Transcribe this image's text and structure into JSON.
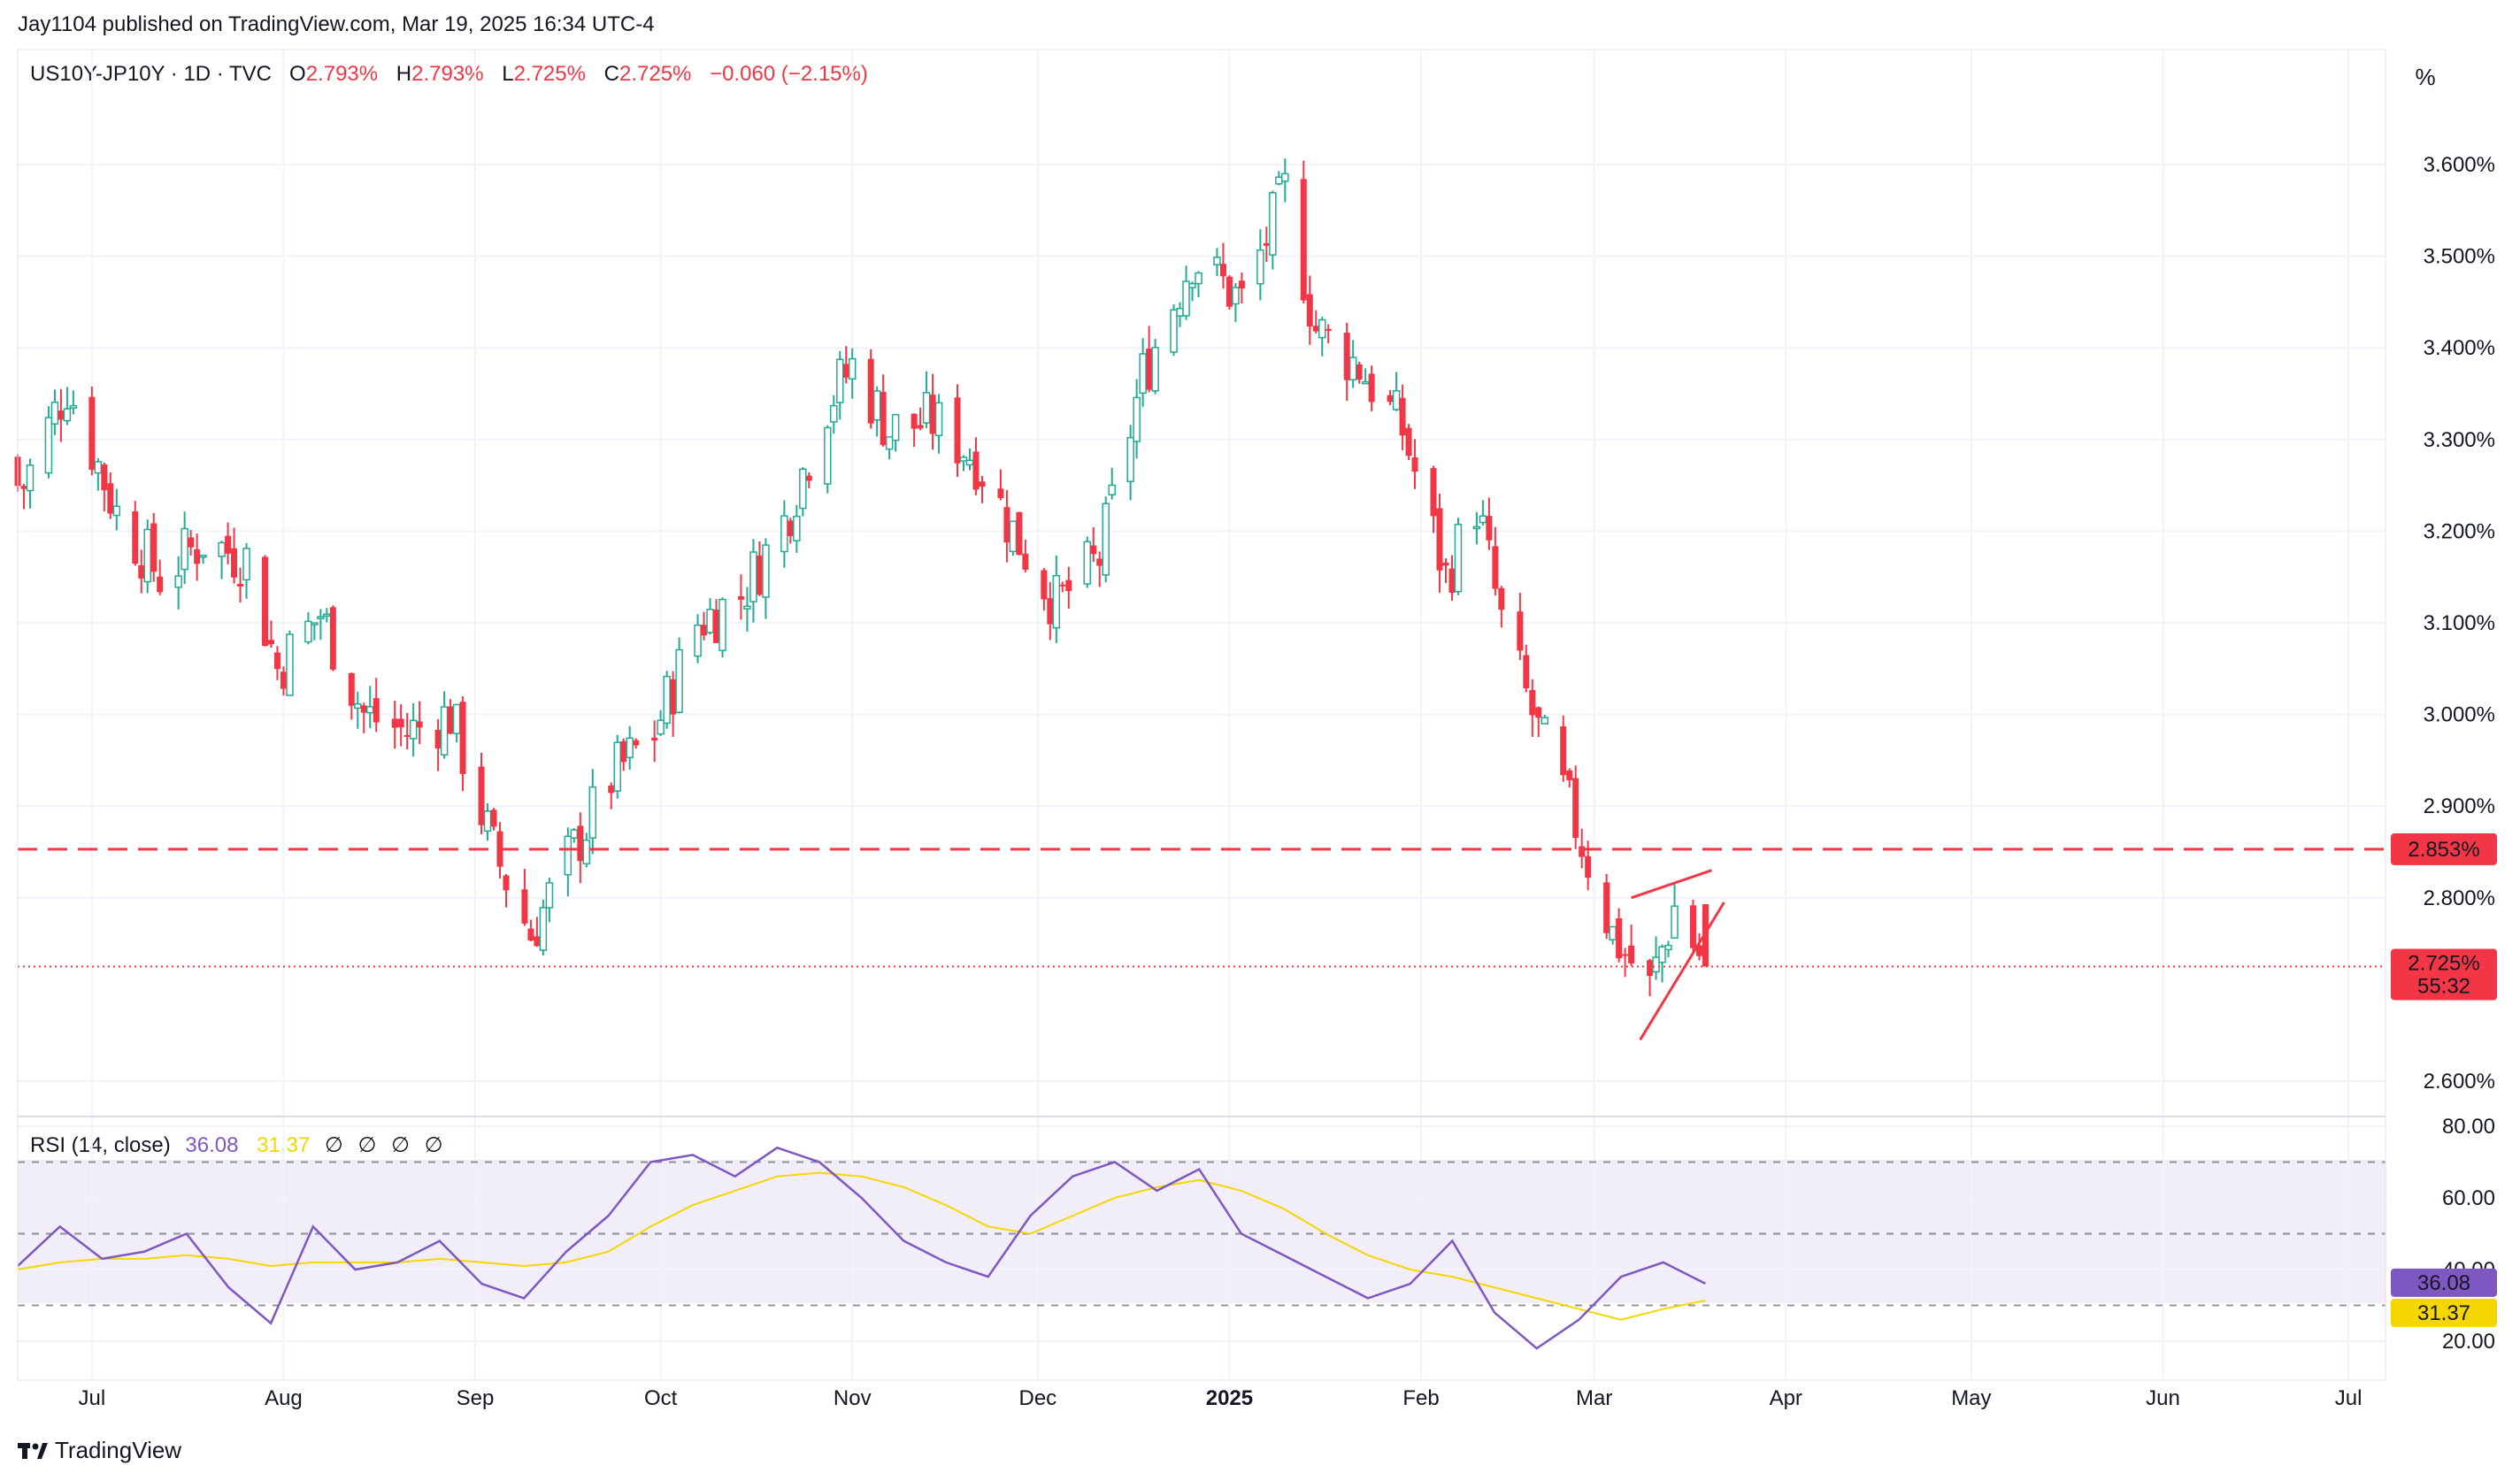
{
  "header": {
    "published": "Jay1104 published on TradingView.com, Mar 19, 2025 16:34 UTC-4"
  },
  "legend": {
    "symbol": "US10Y-JP10Y · 1D · TVC",
    "open_label": "O",
    "open": "2.793%",
    "high_label": "H",
    "high": "2.793%",
    "low_label": "L",
    "low": "2.725%",
    "close_label": "C",
    "close": "2.725%",
    "change": "−0.060 (−2.15%)"
  },
  "scale_button": "%",
  "rsi_legend": {
    "title": "RSI (14, close)",
    "rsi": "36.08",
    "ma": "31.37",
    "na": [
      "∅",
      "∅",
      "∅",
      "∅"
    ]
  },
  "price_axis": {
    "ticks": [
      "3.600%",
      "3.500%",
      "3.400%",
      "3.300%",
      "3.200%",
      "3.100%",
      "3.000%",
      "2.900%",
      "2.800%",
      "2.600%"
    ],
    "resistance_label": "2.853%",
    "last_price_label": "2.725%",
    "countdown": "55:32"
  },
  "rsi_axis": {
    "ticks": [
      "80.00",
      "60.00",
      "40.00",
      "20.00"
    ],
    "rsi_label": "36.08",
    "ma_label": "31.37"
  },
  "time_axis": [
    "Jul",
    "Aug",
    "Sep",
    "Oct",
    "Nov",
    "Dec",
    "2025",
    "Feb",
    "Mar",
    "Apr",
    "May",
    "Jun",
    "Jul"
  ],
  "footer": {
    "brand": "TradingView",
    "logo": "tradingview-logo-icon"
  },
  "colors": {
    "up": "#22ab94",
    "down": "#f23645",
    "rsi": "#7e57c2",
    "rsi_ma": "#f5d600",
    "grid": "#f0f3fa",
    "band": "rgba(126,87,194,0.1)"
  },
  "chart_data": [
    {
      "type": "candlestick",
      "symbol": "US10Y-JP10Y",
      "interval": "1D",
      "unit": "%",
      "ylim": [
        2.56,
        3.66
      ],
      "x_range": [
        "2024-06-19",
        "2025-07-07"
      ],
      "grid": true,
      "scale": "right",
      "resistance": 2.853,
      "last": 2.725,
      "series": [
        {
          "name": "US10Y-JP10Y",
          "dates": [
            "2024-06-20",
            "2024-06-27",
            "2024-07-05",
            "2024-07-12",
            "2024-07-19",
            "2024-07-26",
            "2024-07-31",
            "2024-08-07",
            "2024-08-14",
            "2024-08-21",
            "2024-08-28",
            "2024-09-04",
            "2024-09-10",
            "2024-09-16",
            "2024-09-23",
            "2024-09-30",
            "2024-10-07",
            "2024-10-14",
            "2024-10-21",
            "2024-10-28",
            "2024-11-01",
            "2024-11-07",
            "2024-11-14",
            "2024-11-21",
            "2024-11-27",
            "2024-12-04",
            "2024-12-11",
            "2024-12-18",
            "2024-12-26",
            "2025-01-03",
            "2025-01-10",
            "2025-01-15",
            "2025-01-22",
            "2025-01-29",
            "2025-02-05",
            "2025-02-10",
            "2025-02-14",
            "2025-02-20",
            "2025-02-26",
            "2025-03-04",
            "2025-03-10",
            "2025-03-14",
            "2025-03-19"
          ],
          "close": [
            3.25,
            3.36,
            3.22,
            3.15,
            3.19,
            3.17,
            3.05,
            3.11,
            3.0,
            2.98,
            3.0,
            2.85,
            2.76,
            2.84,
            2.93,
            2.98,
            3.1,
            3.13,
            3.21,
            3.34,
            3.38,
            3.31,
            3.32,
            3.28,
            3.2,
            3.12,
            3.17,
            3.37,
            3.5,
            3.45,
            3.57,
            3.42,
            3.38,
            3.31,
            3.15,
            3.23,
            3.1,
            2.98,
            2.88,
            2.76,
            2.7,
            2.79,
            2.725
          ]
        }
      ]
    },
    {
      "type": "line",
      "title": "RSI (14, close)",
      "ylim": [
        15,
        82
      ],
      "bands": {
        "upper": 70,
        "middle": 50,
        "lower": 30
      },
      "series": [
        {
          "name": "RSI",
          "values": [
            41,
            52,
            43,
            45,
            50,
            35,
            25,
            52,
            40,
            42,
            48,
            36,
            32,
            45,
            55,
            70,
            72,
            66,
            74,
            70,
            60,
            48,
            42,
            38,
            55,
            66,
            70,
            62,
            68,
            50,
            44,
            38,
            32,
            36,
            48,
            28,
            18,
            26,
            38,
            42,
            36.08
          ]
        },
        {
          "name": "MA",
          "values": [
            40,
            42,
            43,
            43,
            44,
            43,
            41,
            42,
            42,
            42,
            43,
            42,
            41,
            42,
            45,
            52,
            58,
            62,
            66,
            67,
            66,
            63,
            58,
            52,
            50,
            55,
            60,
            63,
            65,
            62,
            57,
            50,
            44,
            40,
            38,
            35,
            32,
            29,
            26,
            29,
            31.37
          ]
        }
      ]
    }
  ]
}
